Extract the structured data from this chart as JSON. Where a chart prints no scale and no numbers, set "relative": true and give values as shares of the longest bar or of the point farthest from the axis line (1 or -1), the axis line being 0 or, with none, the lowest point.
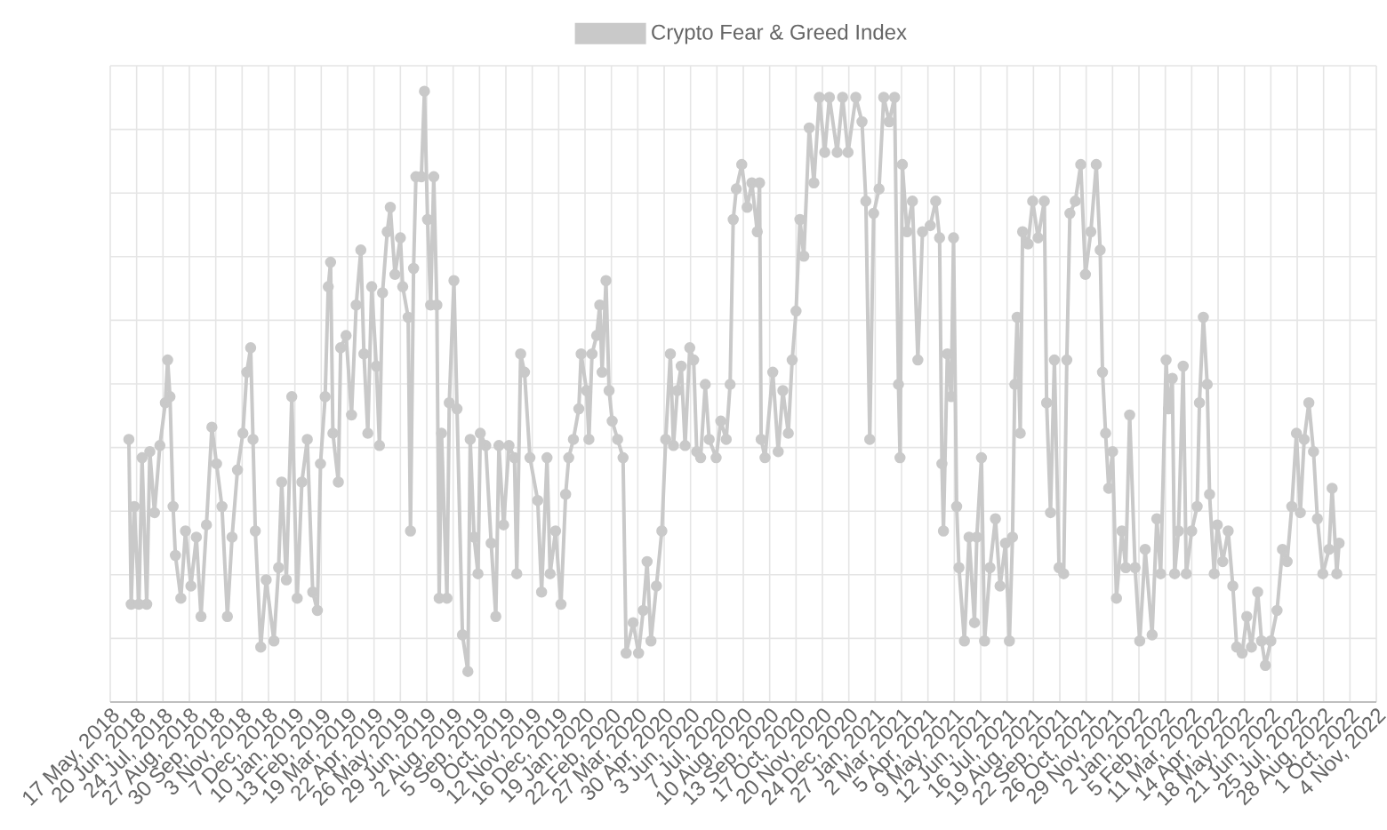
{
  "chart_data": {
    "type": "line",
    "relative": true,
    "tick_labels": "x",
    "grid": true,
    "legend": "top",
    "marker": "circle",
    "line_style": "solid",
    "xlim": [
      "2018-05-17",
      "2022-11-04"
    ],
    "xticks": [
      {
        "value": "2018-05-17",
        "label": "17 May, 2018"
      },
      {
        "value": "2018-06-20",
        "label": "20 Jun, 2018"
      },
      {
        "value": "2018-07-24",
        "label": "24 Jul, 2018"
      },
      {
        "value": "2018-08-27",
        "label": "27 Aug, 2018"
      },
      {
        "value": "2018-09-30",
        "label": "30 Sep, 2018"
      },
      {
        "value": "2018-11-03",
        "label": "3 Nov, 2018"
      },
      {
        "value": "2018-12-07",
        "label": "7 Dec, 2018"
      },
      {
        "value": "2019-01-10",
        "label": "10 Jan, 2019"
      },
      {
        "value": "2019-02-13",
        "label": "13 Feb, 2019"
      },
      {
        "value": "2019-03-19",
        "label": "19 Mar, 2019"
      },
      {
        "value": "2019-04-22",
        "label": "22 Apr, 2019"
      },
      {
        "value": "2019-05-26",
        "label": "26 May, 2019"
      },
      {
        "value": "2019-06-29",
        "label": "29 Jun, 2019"
      },
      {
        "value": "2019-08-02",
        "label": "2 Aug, 2019"
      },
      {
        "value": "2019-09-05",
        "label": "5 Sep, 2019"
      },
      {
        "value": "2019-10-09",
        "label": "9 Oct, 2019"
      },
      {
        "value": "2019-11-12",
        "label": "12 Nov, 2019"
      },
      {
        "value": "2019-12-16",
        "label": "16 Dec, 2019"
      },
      {
        "value": "2020-01-19",
        "label": "19 Jan, 2020"
      },
      {
        "value": "2020-02-22",
        "label": "22 Feb, 2020"
      },
      {
        "value": "2020-03-27",
        "label": "27 Mar, 2020"
      },
      {
        "value": "2020-04-30",
        "label": "30 Apr, 2020"
      },
      {
        "value": "2020-06-03",
        "label": "3 Jun, 2020"
      },
      {
        "value": "2020-07-07",
        "label": "7 Jul, 2020"
      },
      {
        "value": "2020-08-10",
        "label": "10 Aug, 2020"
      },
      {
        "value": "2020-09-13",
        "label": "13 Sep, 2020"
      },
      {
        "value": "2020-10-17",
        "label": "17 Oct, 2020"
      },
      {
        "value": "2020-11-20",
        "label": "20 Nov, 2020"
      },
      {
        "value": "2020-12-24",
        "label": "24 Dec, 2020"
      },
      {
        "value": "2021-01-27",
        "label": "27 Jan, 2021"
      },
      {
        "value": "2021-03-02",
        "label": "2 Mar, 2021"
      },
      {
        "value": "2021-04-05",
        "label": "5 Apr, 2021"
      },
      {
        "value": "2021-05-09",
        "label": "9 May, 2021"
      },
      {
        "value": "2021-06-12",
        "label": "12 Jun, 2021"
      },
      {
        "value": "2021-07-16",
        "label": "16 Jul, 2021"
      },
      {
        "value": "2021-08-19",
        "label": "19 Aug, 2021"
      },
      {
        "value": "2021-09-22",
        "label": "22 Sep, 2021"
      },
      {
        "value": "2021-10-26",
        "label": "26 Oct, 2021"
      },
      {
        "value": "2021-11-29",
        "label": "29 Nov, 2021"
      },
      {
        "value": "2022-01-02",
        "label": "2 Jan, 2022"
      },
      {
        "value": "2022-02-05",
        "label": "5 Feb, 2022"
      },
      {
        "value": "2022-03-11",
        "label": "11 Mar, 2022"
      },
      {
        "value": "2022-04-14",
        "label": "14 Apr, 2022"
      },
      {
        "value": "2022-05-18",
        "label": "18 May, 2022"
      },
      {
        "value": "2022-06-21",
        "label": "21 Jun, 2022"
      },
      {
        "value": "2022-07-25",
        "label": "25 Jul, 2022"
      },
      {
        "value": "2022-08-28",
        "label": "28 Aug, 2022"
      },
      {
        "value": "2022-10-01",
        "label": "1 Oct, 2022"
      },
      {
        "value": "2022-11-04",
        "label": "4 Nov, 2022"
      }
    ],
    "x": [
      "2018-06-10",
      "2018-06-13",
      "2018-06-17",
      "2018-06-23",
      "2018-06-27",
      "2018-07-03",
      "2018-07-07",
      "2018-07-13",
      "2018-07-20",
      "2018-07-27",
      "2018-07-30",
      "2018-08-02",
      "2018-08-06",
      "2018-08-09",
      "2018-08-16",
      "2018-08-22",
      "2018-08-29",
      "2018-09-05",
      "2018-09-11",
      "2018-09-18",
      "2018-09-25",
      "2018-10-01",
      "2018-10-08",
      "2018-10-15",
      "2018-10-21",
      "2018-10-28",
      "2018-11-04",
      "2018-11-09",
      "2018-11-14",
      "2018-11-17",
      "2018-11-20",
      "2018-11-27",
      "2018-12-04",
      "2018-12-14",
      "2018-12-20",
      "2018-12-24",
      "2018-12-30",
      "2019-01-06",
      "2019-01-13",
      "2019-01-19",
      "2019-01-26",
      "2019-02-02",
      "2019-02-08",
      "2019-02-12",
      "2019-02-18",
      "2019-02-22",
      "2019-02-25",
      "2019-02-28",
      "2019-03-07",
      "2019-03-10",
      "2019-03-17",
      "2019-03-24",
      "2019-03-30",
      "2019-04-05",
      "2019-04-09",
      "2019-04-14",
      "2019-04-19",
      "2019-04-25",
      "2019-04-29",
      "2019-05-03",
      "2019-05-09",
      "2019-05-13",
      "2019-05-19",
      "2019-05-26",
      "2019-05-29",
      "2019-06-05",
      "2019-06-08",
      "2019-06-12",
      "2019-06-15",
      "2019-06-22",
      "2019-06-26",
      "2019-06-30",
      "2019-07-04",
      "2019-07-08",
      "2019-07-12",
      "2019-07-15",
      "2019-07-18",
      "2019-07-25",
      "2019-07-28",
      "2019-08-03",
      "2019-08-07",
      "2019-08-14",
      "2019-08-21",
      "2019-08-24",
      "2019-08-29",
      "2019-09-03",
      "2019-09-06",
      "2019-09-13",
      "2019-09-20",
      "2019-09-26",
      "2019-09-30",
      "2019-10-06",
      "2019-10-13",
      "2019-10-20",
      "2019-10-23",
      "2019-10-28",
      "2019-11-02",
      "2019-11-09",
      "2019-11-19",
      "2019-11-24",
      "2019-12-01",
      "2019-12-05",
      "2019-12-12",
      "2019-12-19",
      "2019-12-25",
      "2019-12-29",
      "2020-01-04",
      "2020-01-11",
      "2020-01-14",
      "2020-01-21",
      "2020-01-24",
      "2020-01-28",
      "2020-02-03",
      "2020-02-07",
      "2020-02-10",
      "2020-02-15",
      "2020-02-19",
      "2020-02-23",
      "2020-03-01",
      "2020-03-08",
      "2020-03-12",
      "2020-03-21",
      "2020-03-28",
      "2020-04-03",
      "2020-04-08",
      "2020-04-13",
      "2020-04-20",
      "2020-04-27",
      "2020-05-02",
      "2020-05-08",
      "2020-05-12",
      "2020-05-17",
      "2020-05-22",
      "2020-05-27",
      "2020-06-02",
      "2020-06-07",
      "2020-06-11",
      "2020-06-16",
      "2020-06-22",
      "2020-06-27",
      "2020-07-06",
      "2020-07-12",
      "2020-07-19",
      "2020-07-24",
      "2020-07-28",
      "2020-08-01",
      "2020-08-08",
      "2020-08-15",
      "2020-08-21",
      "2020-08-28",
      "2020-08-31",
      "2020-09-02",
      "2020-09-07",
      "2020-09-17",
      "2020-09-24",
      "2020-09-30",
      "2020-10-07",
      "2020-10-12",
      "2020-10-17",
      "2020-10-22",
      "2020-10-27",
      "2020-11-03",
      "2020-11-09",
      "2020-11-16",
      "2020-11-23",
      "2020-11-29",
      "2020-12-09",
      "2020-12-16",
      "2020-12-23",
      "2021-01-02",
      "2021-01-10",
      "2021-01-15",
      "2021-01-20",
      "2021-01-25",
      "2021-02-01",
      "2021-02-07",
      "2021-02-14",
      "2021-02-21",
      "2021-02-26",
      "2021-02-28",
      "2021-03-03",
      "2021-03-09",
      "2021-03-16",
      "2021-03-23",
      "2021-03-29",
      "2021-04-08",
      "2021-04-15",
      "2021-04-20",
      "2021-04-23",
      "2021-04-25",
      "2021-04-30",
      "2021-05-05",
      "2021-05-08",
      "2021-05-12",
      "2021-05-15",
      "2021-05-22",
      "2021-05-28",
      "2021-06-04",
      "2021-06-07",
      "2021-06-13",
      "2021-06-17",
      "2021-06-24",
      "2021-07-01",
      "2021-07-07",
      "2021-07-14",
      "2021-07-19",
      "2021-07-23",
      "2021-07-26",
      "2021-07-29",
      "2021-08-02",
      "2021-08-05",
      "2021-08-12",
      "2021-08-18",
      "2021-08-25",
      "2021-09-02",
      "2021-09-05",
      "2021-09-10",
      "2021-09-15",
      "2021-09-21",
      "2021-09-27",
      "2021-10-01",
      "2021-10-05",
      "2021-10-12",
      "2021-10-19",
      "2021-10-25",
      "2021-11-01",
      "2021-11-08",
      "2021-11-13",
      "2021-11-16",
      "2021-11-20",
      "2021-11-24",
      "2021-11-29",
      "2021-12-04",
      "2021-12-11",
      "2021-12-16",
      "2021-12-21",
      "2021-12-28",
      "2022-01-03",
      "2022-01-10",
      "2022-01-19",
      "2022-01-25",
      "2022-01-30",
      "2022-02-06",
      "2022-02-09",
      "2022-02-14",
      "2022-02-17",
      "2022-02-22",
      "2022-02-28",
      "2022-03-04",
      "2022-03-11",
      "2022-03-18",
      "2022-03-21",
      "2022-03-26",
      "2022-03-31",
      "2022-04-03",
      "2022-04-09",
      "2022-04-13",
      "2022-04-20",
      "2022-04-27",
      "2022-05-03",
      "2022-05-08",
      "2022-05-15",
      "2022-05-21",
      "2022-05-27",
      "2022-06-04",
      "2022-06-09",
      "2022-06-14",
      "2022-06-21",
      "2022-06-29",
      "2022-07-06",
      "2022-07-12",
      "2022-07-18",
      "2022-07-24",
      "2022-07-29",
      "2022-08-03",
      "2022-08-09",
      "2022-08-15",
      "2022-08-20",
      "2022-08-27",
      "2022-09-04",
      "2022-09-08",
      "2022-09-14",
      "2022-09-17"
    ],
    "series": [
      {
        "name": "Crypto Fear & Greed Index",
        "color": "#c9c9c9",
        "values": [
          0.43,
          0.16,
          0.32,
          0.16,
          0.4,
          0.16,
          0.41,
          0.31,
          0.42,
          0.49,
          0.56,
          0.5,
          0.32,
          0.24,
          0.17,
          0.28,
          0.19,
          0.27,
          0.14,
          0.29,
          0.45,
          0.39,
          0.32,
          0.14,
          0.27,
          0.38,
          0.44,
          0.54,
          0.58,
          0.43,
          0.28,
          0.09,
          0.2,
          0.1,
          0.22,
          0.36,
          0.2,
          0.5,
          0.17,
          0.36,
          0.43,
          0.18,
          0.15,
          0.39,
          0.5,
          0.68,
          0.72,
          0.44,
          0.36,
          0.58,
          0.6,
          0.47,
          0.65,
          0.74,
          0.57,
          0.44,
          0.68,
          0.55,
          0.42,
          0.67,
          0.77,
          0.81,
          0.7,
          0.76,
          0.68,
          0.63,
          0.28,
          0.71,
          0.86,
          0.86,
          1.0,
          0.79,
          0.65,
          0.86,
          0.65,
          0.17,
          0.44,
          0.17,
          0.49,
          0.69,
          0.48,
          0.11,
          0.05,
          0.43,
          0.27,
          0.21,
          0.44,
          0.42,
          0.26,
          0.14,
          0.42,
          0.29,
          0.42,
          0.4,
          0.21,
          0.57,
          0.54,
          0.4,
          0.33,
          0.18,
          0.4,
          0.21,
          0.28,
          0.16,
          0.34,
          0.4,
          0.43,
          0.48,
          0.57,
          0.51,
          0.43,
          0.57,
          0.6,
          0.65,
          0.54,
          0.69,
          0.51,
          0.46,
          0.43,
          0.4,
          0.08,
          0.13,
          0.08,
          0.15,
          0.23,
          0.1,
          0.19,
          0.28,
          0.43,
          0.57,
          0.42,
          0.51,
          0.55,
          0.42,
          0.58,
          0.56,
          0.41,
          0.4,
          0.52,
          0.43,
          0.4,
          0.46,
          0.43,
          0.52,
          0.79,
          0.84,
          0.88,
          0.81,
          0.85,
          0.77,
          0.85,
          0.43,
          0.4,
          0.54,
          0.41,
          0.51,
          0.44,
          0.56,
          0.64,
          0.79,
          0.73,
          0.94,
          0.85,
          0.99,
          0.9,
          0.99,
          0.9,
          0.99,
          0.9,
          0.99,
          0.95,
          0.82,
          0.43,
          0.8,
          0.84,
          0.99,
          0.95,
          0.99,
          0.52,
          0.4,
          0.88,
          0.77,
          0.82,
          0.56,
          0.77,
          0.78,
          0.82,
          0.76,
          0.39,
          0.28,
          0.57,
          0.5,
          0.76,
          0.32,
          0.22,
          0.1,
          0.27,
          0.13,
          0.27,
          0.4,
          0.1,
          0.22,
          0.3,
          0.19,
          0.26,
          0.1,
          0.27,
          0.52,
          0.63,
          0.44,
          0.77,
          0.75,
          0.82,
          0.76,
          0.82,
          0.49,
          0.31,
          0.56,
          0.22,
          0.21,
          0.56,
          0.8,
          0.82,
          0.88,
          0.7,
          0.77,
          0.88,
          0.74,
          0.54,
          0.44,
          0.35,
          0.41,
          0.17,
          0.28,
          0.22,
          0.47,
          0.22,
          0.1,
          0.25,
          0.11,
          0.3,
          0.21,
          0.56,
          0.48,
          0.53,
          0.21,
          0.28,
          0.55,
          0.21,
          0.28,
          0.32,
          0.49,
          0.63,
          0.52,
          0.34,
          0.21,
          0.29,
          0.23,
          0.28,
          0.19,
          0.09,
          0.08,
          0.14,
          0.09,
          0.18,
          0.1,
          0.06,
          0.1,
          0.15,
          0.25,
          0.23,
          0.32,
          0.44,
          0.31,
          0.43,
          0.49,
          0.41,
          0.3,
          0.21,
          0.25,
          0.35,
          0.21,
          0.26
        ]
      }
    ]
  }
}
